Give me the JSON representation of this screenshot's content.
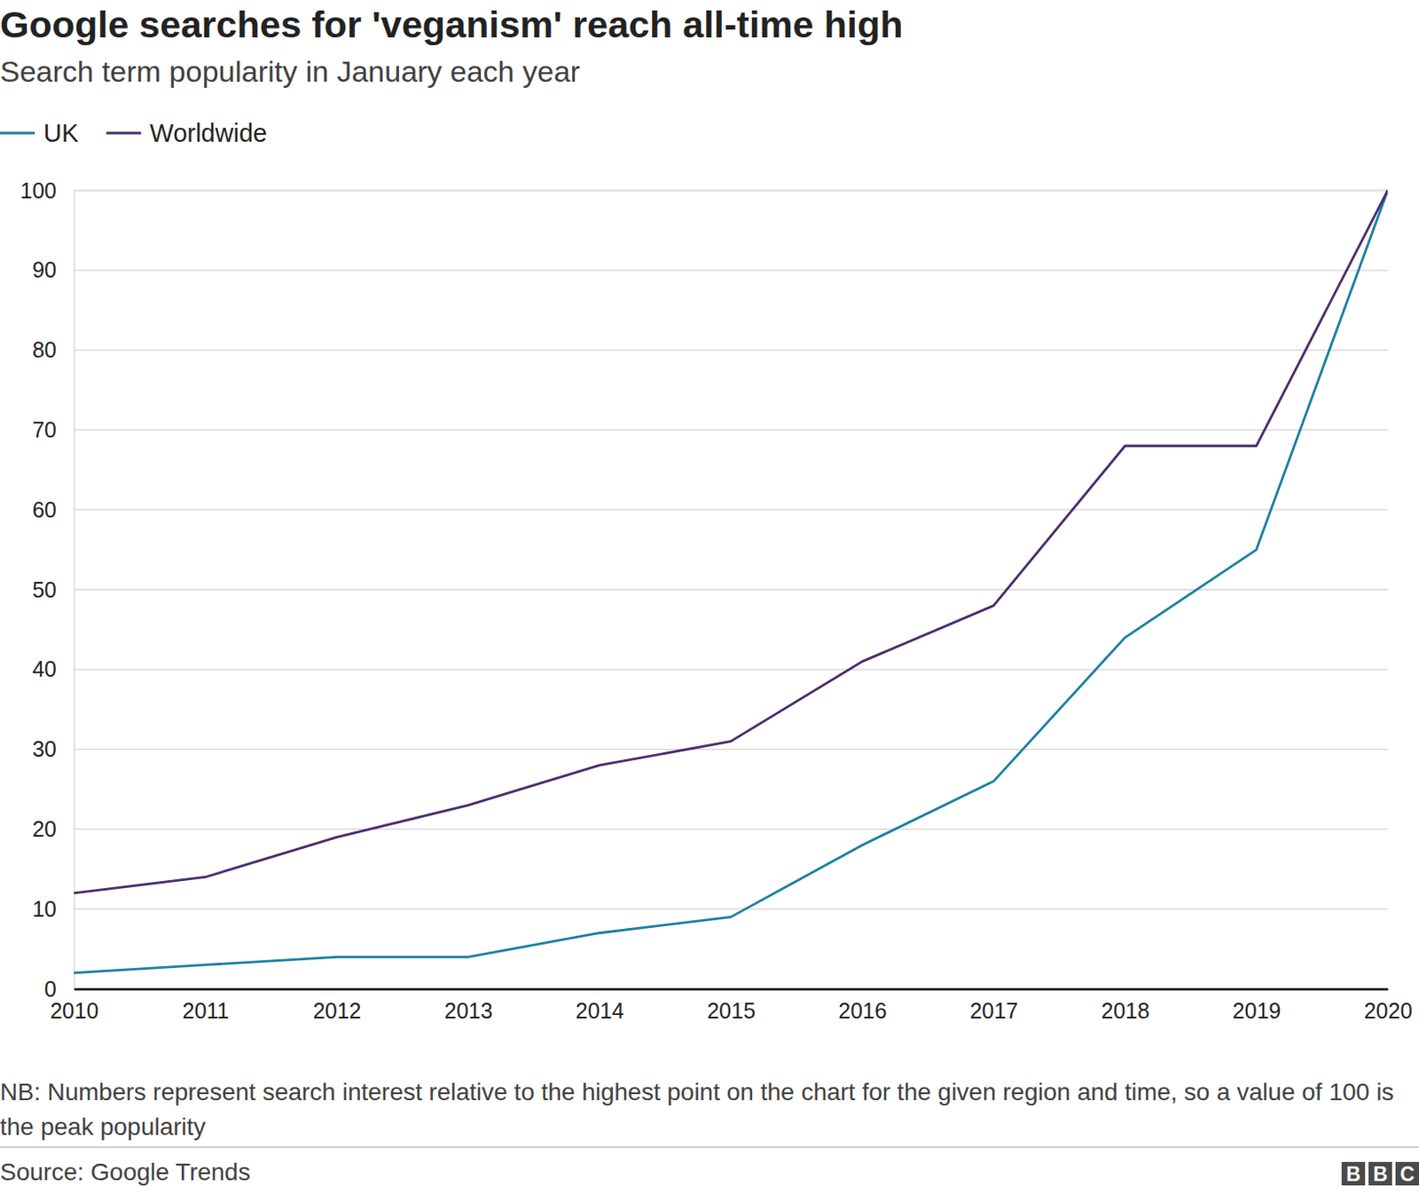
{
  "chart_data": {
    "type": "line",
    "title": "Google searches for 'veganism' reach all-time high",
    "subtitle": "Search term popularity in January each year",
    "x": [
      2010,
      2011,
      2012,
      2013,
      2014,
      2015,
      2016,
      2017,
      2018,
      2019,
      2020
    ],
    "series": [
      {
        "name": "UK",
        "color": "#1a80a2",
        "values": [
          2,
          3,
          4,
          4,
          7,
          9,
          18,
          26,
          44,
          55,
          100
        ]
      },
      {
        "name": "Worldwide",
        "color": "#4b2c6e",
        "values": [
          12,
          14,
          19,
          23,
          28,
          31,
          41,
          48,
          68,
          68,
          100
        ]
      }
    ],
    "xlim": [
      2010,
      2020
    ],
    "xticks": [
      2010,
      2011,
      2012,
      2013,
      2014,
      2015,
      2016,
      2017,
      2018,
      2019,
      2020
    ],
    "ylim": [
      0,
      100
    ],
    "yticks": [
      0,
      10,
      20,
      30,
      40,
      50,
      60,
      70,
      80,
      90,
      100
    ],
    "grid": true,
    "legend": "top-left",
    "note": "NB: Numbers represent search interest relative to the highest point on the chart for the given region and time, so a value of 100 is the peak popularity",
    "source": "Source: Google Trends",
    "logo": "BBC"
  }
}
